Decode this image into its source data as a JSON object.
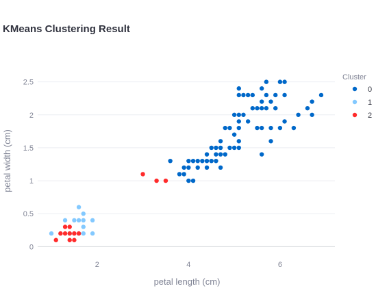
{
  "chart_data": {
    "type": "scatter",
    "title": "KMeans Clustering Result",
    "xlabel": "petal length (cm)",
    "ylabel": "petal width (cm)",
    "xlim": [
      0.7,
      7.2
    ],
    "ylim": [
      -0.1,
      2.6
    ],
    "xticks": [
      2,
      4,
      6
    ],
    "yticks": [
      0,
      0.5,
      1,
      1.5,
      2,
      2.5
    ],
    "grid": true,
    "legend": {
      "title": "Cluster",
      "position": "right"
    },
    "series": [
      {
        "name": "0",
        "color": "#0068c9",
        "points": [
          [
            3.6,
            1.3
          ],
          [
            3.8,
            1.1
          ],
          [
            3.9,
            1.1
          ],
          [
            3.9,
            1.2
          ],
          [
            4.0,
            1.0
          ],
          [
            4.0,
            1.2
          ],
          [
            4.0,
            1.3
          ],
          [
            4.1,
            1.0
          ],
          [
            4.1,
            1.3
          ],
          [
            4.2,
            1.2
          ],
          [
            4.2,
            1.3
          ],
          [
            4.3,
            1.3
          ],
          [
            4.4,
            1.2
          ],
          [
            4.4,
            1.3
          ],
          [
            4.4,
            1.4
          ],
          [
            4.5,
            1.3
          ],
          [
            4.5,
            1.5
          ],
          [
            4.6,
            1.3
          ],
          [
            4.6,
            1.4
          ],
          [
            4.6,
            1.5
          ],
          [
            4.7,
            1.2
          ],
          [
            4.7,
            1.4
          ],
          [
            4.7,
            1.5
          ],
          [
            4.7,
            1.6
          ],
          [
            4.8,
            1.4
          ],
          [
            4.8,
            1.8
          ],
          [
            4.9,
            1.5
          ],
          [
            4.9,
            1.8
          ],
          [
            5.0,
            1.5
          ],
          [
            5.0,
            1.7
          ],
          [
            5.0,
            2.0
          ],
          [
            5.1,
            1.5
          ],
          [
            5.1,
            1.6
          ],
          [
            5.1,
            1.8
          ],
          [
            5.1,
            1.9
          ],
          [
            5.1,
            2.0
          ],
          [
            5.1,
            2.3
          ],
          [
            5.1,
            2.4
          ],
          [
            5.2,
            2.0
          ],
          [
            5.2,
            2.3
          ],
          [
            5.3,
            1.9
          ],
          [
            5.3,
            2.3
          ],
          [
            5.4,
            2.1
          ],
          [
            5.4,
            2.3
          ],
          [
            5.5,
            1.8
          ],
          [
            5.5,
            2.1
          ],
          [
            5.6,
            1.4
          ],
          [
            5.6,
            1.8
          ],
          [
            5.6,
            2.1
          ],
          [
            5.6,
            2.2
          ],
          [
            5.6,
            2.4
          ],
          [
            5.7,
            2.1
          ],
          [
            5.7,
            2.3
          ],
          [
            5.7,
            2.5
          ],
          [
            5.8,
            1.6
          ],
          [
            5.8,
            1.8
          ],
          [
            5.8,
            2.2
          ],
          [
            5.9,
            2.1
          ],
          [
            5.9,
            2.3
          ],
          [
            6.0,
            1.8
          ],
          [
            6.0,
            2.5
          ],
          [
            6.1,
            1.9
          ],
          [
            6.1,
            2.3
          ],
          [
            6.1,
            2.5
          ],
          [
            6.3,
            1.8
          ],
          [
            6.4,
            2.0
          ],
          [
            6.6,
            2.1
          ],
          [
            6.7,
            2.0
          ],
          [
            6.7,
            2.2
          ],
          [
            6.9,
            2.3
          ]
        ]
      },
      {
        "name": "1",
        "color": "#83c9ff",
        "points": [
          [
            1.0,
            0.2
          ],
          [
            1.2,
            0.2
          ],
          [
            1.3,
            0.4
          ],
          [
            1.4,
            0.2
          ],
          [
            1.5,
            0.2
          ],
          [
            1.5,
            0.4
          ],
          [
            1.6,
            0.2
          ],
          [
            1.6,
            0.4
          ],
          [
            1.6,
            0.6
          ],
          [
            1.7,
            0.2
          ],
          [
            1.7,
            0.3
          ],
          [
            1.7,
            0.4
          ],
          [
            1.7,
            0.5
          ],
          [
            1.9,
            0.2
          ],
          [
            1.9,
            0.4
          ]
        ]
      },
      {
        "name": "2",
        "color": "#ff2b2b",
        "points": [
          [
            1.1,
            0.1
          ],
          [
            1.2,
            0.2
          ],
          [
            1.3,
            0.2
          ],
          [
            1.3,
            0.3
          ],
          [
            1.4,
            0.1
          ],
          [
            1.4,
            0.2
          ],
          [
            1.4,
            0.3
          ],
          [
            1.5,
            0.1
          ],
          [
            1.5,
            0.2
          ],
          [
            1.6,
            0.2
          ],
          [
            3.0,
            1.1
          ],
          [
            3.3,
            1.0
          ],
          [
            3.5,
            1.0
          ]
        ]
      }
    ]
  }
}
